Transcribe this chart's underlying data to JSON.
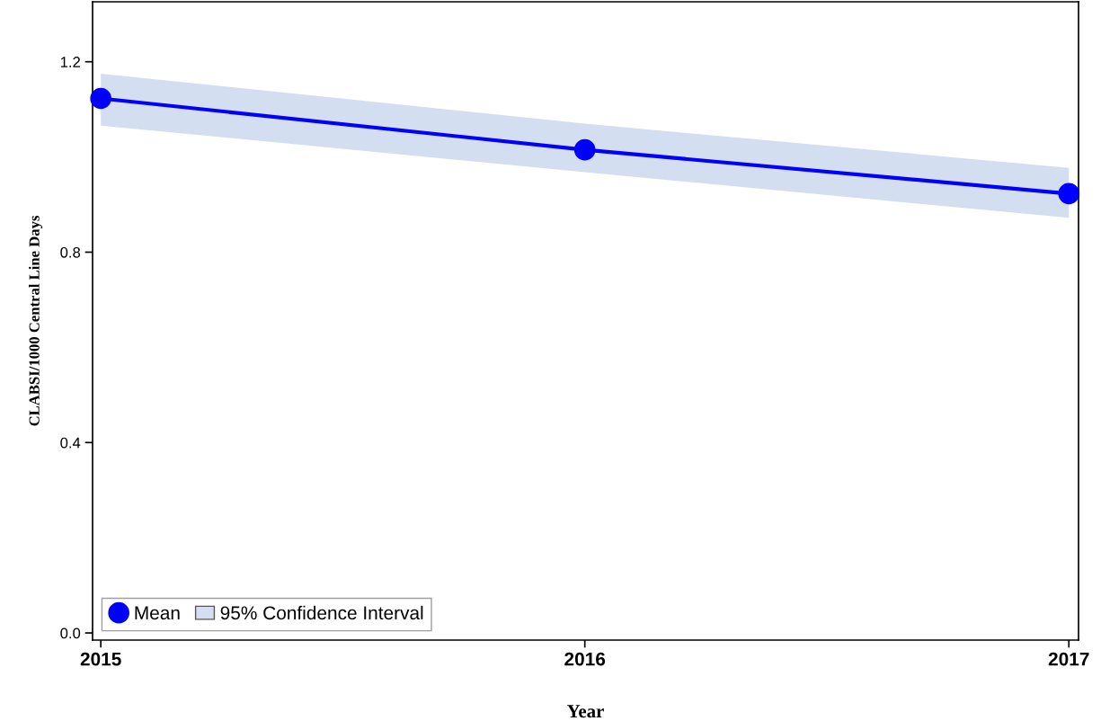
{
  "chart_data": {
    "type": "line",
    "xlabel": "Year",
    "ylabel": "CLABSI/1000 Central Line Days",
    "x": [
      2015,
      2016,
      2017
    ],
    "series": [
      {
        "name": "Mean",
        "color": "#0000ff",
        "values": [
          1.123,
          1.015,
          0.923
        ],
        "marker": "circle"
      },
      {
        "name": "95% Confidence Interval",
        "type": "area",
        "color": "#d3dff0",
        "values": [
          null,
          null,
          null
        ],
        "lower": [
          1.066,
          0.968,
          0.872
        ],
        "upper": [
          1.175,
          1.07,
          0.977
        ]
      }
    ],
    "xlim": [
      2014.983,
      2017.02
    ],
    "xticks": [
      2015,
      2016,
      2017
    ],
    "ylim": [
      -0.015,
      1.326
    ],
    "yticks": [
      {
        "value": 0,
        "label": "0.0"
      },
      0.4,
      0.8,
      1.2
    ],
    "grid": false,
    "legend": "bottom left"
  }
}
